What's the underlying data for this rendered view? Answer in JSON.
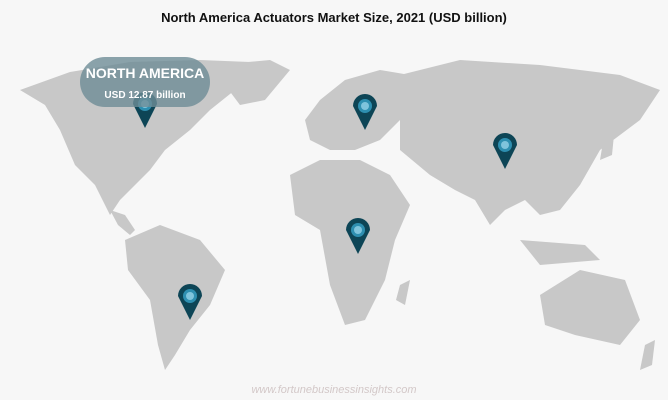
{
  "title": "North America Actuators Market Size, 2021 (USD billion)",
  "tooltip": {
    "region": "NORTH AMERICA",
    "value": "USD 12.87 billion"
  },
  "watermark": "www.fortunebusinessinsights.com",
  "colors": {
    "land": "#c8c8c8",
    "background": "#f7f7f7",
    "pin": "#0d4556",
    "pin_inner": "#7fc4dc"
  },
  "pins": [
    "north-america",
    "europe",
    "asia-pacific",
    "middle-east-africa",
    "latin-america"
  ]
}
